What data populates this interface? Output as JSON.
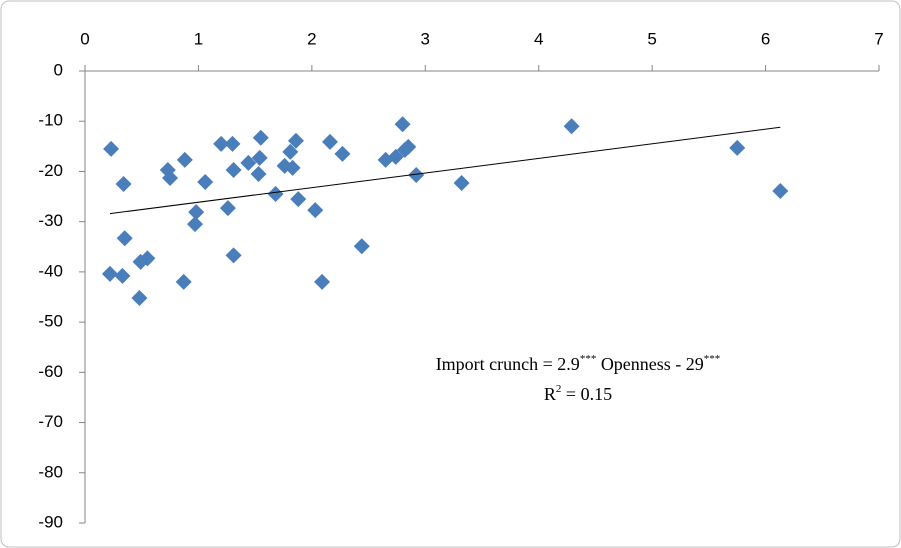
{
  "chart_data": {
    "type": "scatter",
    "x": [
      0.23,
      0.22,
      0.34,
      0.35,
      0.33,
      0.48,
      0.49,
      0.55,
      0.73,
      0.75,
      0.88,
      0.87,
      0.98,
      0.97,
      1.06,
      1.2,
      1.26,
      1.3,
      1.31,
      1.31,
      1.44,
      1.55,
      1.54,
      1.53,
      1.68,
      1.76,
      1.83,
      1.81,
      1.86,
      1.88,
      2.03,
      2.09,
      2.16,
      2.27,
      2.44,
      2.65,
      2.74,
      2.8,
      2.82,
      2.85,
      2.92,
      3.32,
      4.29,
      5.75,
      6.13
    ],
    "series": [
      {
        "color": "#4a7ebb",
        "values": [
          -15.5,
          -40.4,
          -22.5,
          -33.3,
          -40.8,
          -45.2,
          -38.0,
          -37.3,
          -19.7,
          -21.3,
          -17.7,
          -42.0,
          -28.1,
          -30.5,
          -22.1,
          -14.5,
          -27.3,
          -14.5,
          -19.7,
          -36.7,
          -18.3,
          -13.3,
          -17.3,
          -20.5,
          -24.5,
          -18.9,
          -19.3,
          -16.1,
          -13.9,
          -25.5,
          -27.7,
          -42.0,
          -14.1,
          -16.5,
          -34.9,
          -17.7,
          -17.1,
          -10.6,
          -15.7,
          -15.1,
          -20.7,
          -22.3,
          -11.0,
          -15.3,
          -23.9
        ]
      }
    ],
    "trendline": {
      "x": [
        0.22,
        6.13
      ],
      "values": [
        -28.4,
        -11.2
      ],
      "color": "#000000"
    },
    "xlim": [
      0,
      7
    ],
    "xticks": [
      0,
      1,
      2,
      3,
      4,
      5,
      6,
      7
    ],
    "ylim": [
      -90,
      0
    ],
    "yticks": [
      0,
      -10,
      -20,
      -30,
      -40,
      -50,
      -60,
      -70,
      -80,
      -90
    ],
    "annotation": [
      "Import crunch  = 2.9",
      "***",
      " Openness - 29",
      "***"
    ],
    "r2_annotation": [
      "R",
      "2",
      " = 0.15"
    ]
  }
}
